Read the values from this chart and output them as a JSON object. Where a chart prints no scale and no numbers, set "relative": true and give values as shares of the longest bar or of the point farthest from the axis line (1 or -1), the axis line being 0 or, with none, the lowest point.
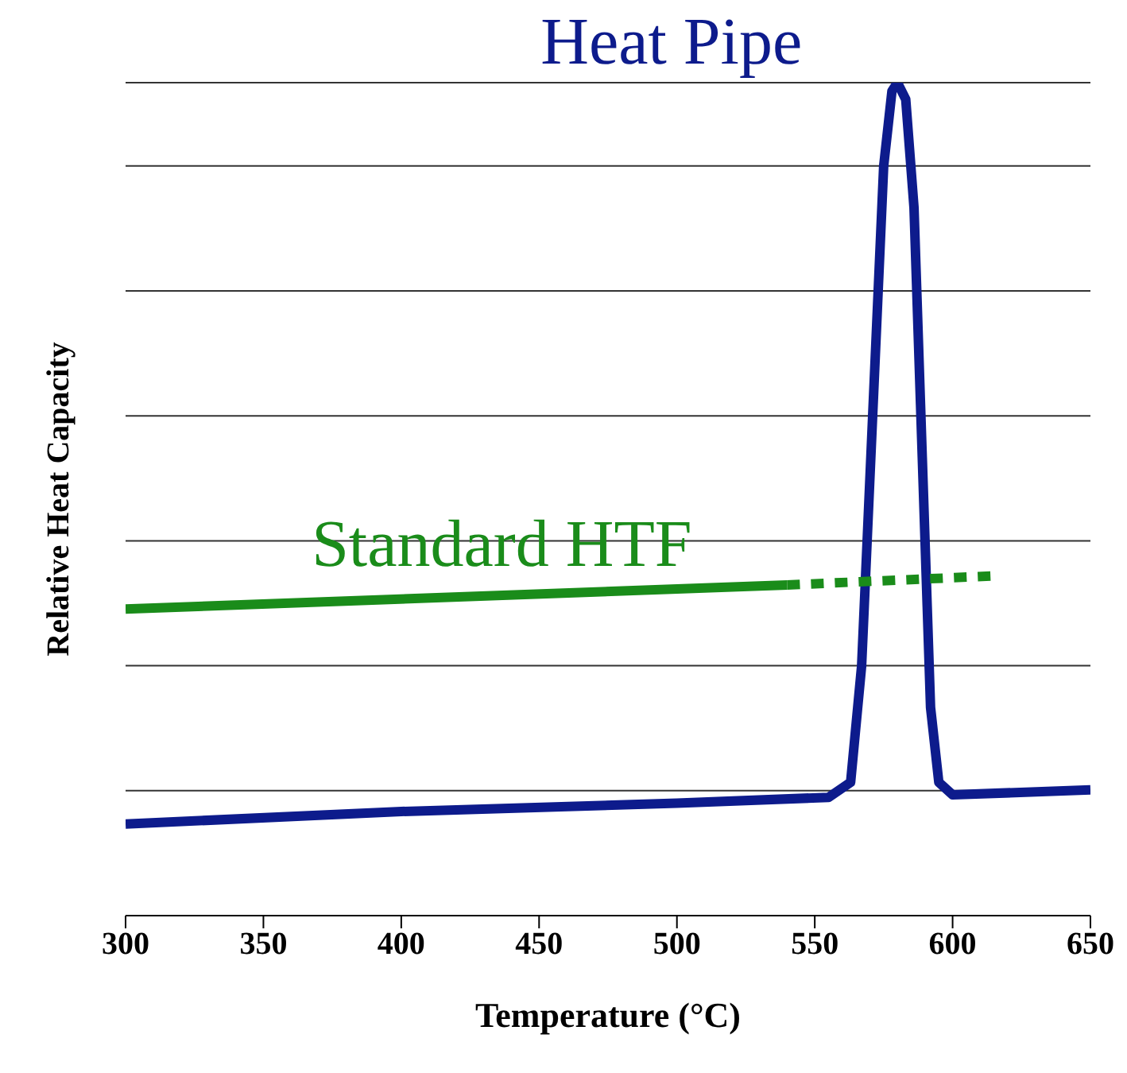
{
  "chart_data": {
    "type": "line",
    "relative": true,
    "xlabel": "Temperature (°C)",
    "ylabel": "Relative Heat Capacity",
    "xlim": [
      300,
      650
    ],
    "xticks": [
      300,
      350,
      400,
      450,
      500,
      550,
      600,
      650
    ],
    "grid": "y",
    "marker": "none",
    "series": [
      {
        "name": "Heat Pipe",
        "color": "#0d1b8c",
        "line_style": "solid",
        "x": [
          300,
          400,
          500,
          555,
          563,
          567,
          571,
          575,
          578,
          580,
          583,
          586,
          589,
          592,
          595,
          600,
          650
        ],
        "values": [
          0.11,
          0.125,
          0.135,
          0.142,
          0.16,
          0.3,
          0.6,
          0.9,
          0.99,
          1,
          0.98,
          0.85,
          0.55,
          0.25,
          0.16,
          0.145,
          0.151
        ]
      },
      {
        "name": "Standard HTF",
        "color": "#1a8c1a",
        "line_style": "solid",
        "x": [
          300,
          540
        ],
        "values": [
          0.368,
          0.397
        ]
      },
      {
        "color": "#1a8c1a",
        "line_style": "dotted",
        "x": [
          540,
          616
        ],
        "values": [
          0.397,
          0.408
        ]
      }
    ]
  }
}
